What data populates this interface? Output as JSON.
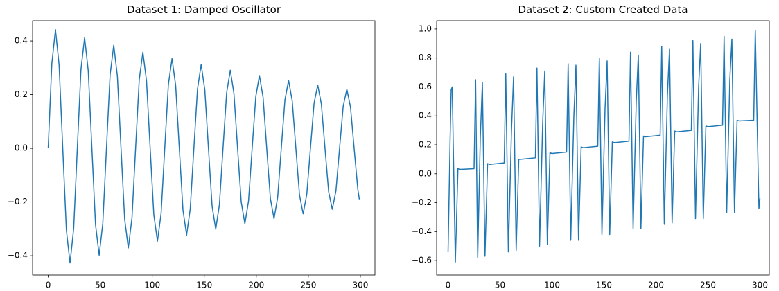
{
  "chart_data": [
    {
      "type": "line",
      "title": "Dataset 1: Damped Oscillator",
      "color": "#1f77b4",
      "x": [
        0,
        3.5,
        7,
        10.5,
        14,
        17.5,
        21,
        24.5,
        28,
        31.5,
        35,
        38.5,
        42,
        45.5,
        49,
        52.5,
        56,
        59.5,
        63,
        66.5,
        70,
        73.5,
        77,
        80.5,
        84,
        87.5,
        91,
        94.5,
        98,
        101.5,
        105,
        108.5,
        112,
        115.5,
        119,
        122.5,
        126,
        129.5,
        133,
        136.5,
        140,
        143.5,
        147,
        150.5,
        154,
        157.5,
        161,
        164.5,
        168,
        171.5,
        175,
        178.5,
        182,
        185.5,
        189,
        192.5,
        196,
        199.5,
        203,
        206.5,
        210,
        213.5,
        217,
        220.5,
        224,
        227.5,
        231,
        234.5,
        238,
        241.5,
        245,
        248.5,
        252,
        255.5,
        259,
        262.5,
        266,
        269.5,
        273,
        276.5,
        280,
        283.5,
        287,
        290.5,
        294,
        297.5,
        299
      ],
      "values": [
        0,
        0.315,
        0.442,
        0.31,
        0,
        -0.305,
        -0.427,
        -0.299,
        0,
        0.294,
        0.412,
        0.289,
        0,
        -0.284,
        -0.398,
        -0.279,
        0,
        0.274,
        0.384,
        0.269,
        0,
        -0.264,
        -0.371,
        -0.26,
        0,
        0.256,
        0.358,
        0.251,
        0,
        -0.247,
        -0.346,
        -0.243,
        0,
        0.238,
        0.334,
        0.234,
        0,
        -0.229,
        -0.323,
        -0.226,
        0,
        0.222,
        0.312,
        0.218,
        0,
        -0.215,
        -0.301,
        -0.211,
        0,
        0.207,
        0.291,
        0.204,
        0,
        -0.2,
        -0.281,
        -0.197,
        0,
        0.193,
        0.271,
        0.19,
        0,
        -0.187,
        -0.262,
        -0.183,
        0,
        0.18,
        0.253,
        0.177,
        0,
        -0.174,
        -0.244,
        -0.171,
        0,
        0.168,
        0.236,
        0.165,
        0,
        -0.162,
        -0.227,
        -0.159,
        0,
        0.157,
        0.22,
        0.154,
        0,
        -0.151,
        -0.19
      ],
      "xlim": [
        -15,
        314
      ],
      "xticks": [
        0,
        50,
        100,
        150,
        200,
        250,
        300
      ],
      "ylim": [
        -0.472,
        0.475
      ],
      "yticks": [
        {
          "value": -0.4,
          "label": "−0.4"
        },
        {
          "value": -0.2,
          "label": "−0.2"
        },
        {
          "value": 0,
          "label": "0.0"
        },
        0.2,
        0.4
      ],
      "grid": false
    },
    {
      "type": "line",
      "title": "Dataset 2: Custom Created Data",
      "color": "#1f77b4",
      "x": [
        0,
        2,
        3,
        4,
        7,
        9.5,
        12,
        25,
        26.5,
        28.5,
        31,
        33,
        35.5,
        38,
        40,
        54,
        55.5,
        58,
        61,
        63,
        65.5,
        68,
        70,
        84,
        85.5,
        88,
        91,
        93,
        95.5,
        98,
        100,
        114,
        115.5,
        118,
        121,
        123,
        125.5,
        128,
        130,
        144,
        145.5,
        148,
        151,
        153,
        155.5,
        158,
        160,
        174,
        175.5,
        178,
        181,
        183,
        185.5,
        188,
        190,
        204,
        205.5,
        208,
        211,
        213,
        215.5,
        218,
        220,
        234,
        235.5,
        238,
        241,
        243,
        245.5,
        248,
        250,
        264,
        265.5,
        268,
        271,
        273,
        275.5,
        278,
        280,
        294,
        295.5,
        299,
        300
      ],
      "values": [
        -0.54,
        0.25,
        0.58,
        0.6,
        -0.61,
        0.035,
        0.03,
        0.035,
        0.65,
        -0.58,
        0.25,
        0.63,
        -0.57,
        0.07,
        0.065,
        0.075,
        0.69,
        -0.54,
        0.3,
        0.67,
        -0.53,
        0.1,
        0.1,
        0.11,
        0.73,
        -0.5,
        0.35,
        0.71,
        -0.49,
        0.145,
        0.14,
        0.15,
        0.76,
        -0.46,
        0.4,
        0.75,
        -0.46,
        0.185,
        0.18,
        0.19,
        0.8,
        -0.42,
        0.45,
        0.78,
        -0.42,
        0.22,
        0.215,
        0.225,
        0.84,
        -0.38,
        0.5,
        0.82,
        -0.38,
        0.26,
        0.255,
        0.265,
        0.88,
        -0.35,
        0.55,
        0.86,
        -0.34,
        0.295,
        0.29,
        0.3,
        0.92,
        -0.31,
        0.6,
        0.9,
        -0.31,
        0.33,
        0.325,
        0.335,
        0.95,
        -0.27,
        0.65,
        0.93,
        -0.27,
        0.37,
        0.365,
        0.37,
        0.99,
        -0.24,
        -0.17
      ],
      "xlim": [
        -11,
        309
      ],
      "xticks": [
        0,
        50,
        100,
        150,
        200,
        250,
        300
      ],
      "ylim": [
        -0.7,
        1.057
      ],
      "yticks": [
        {
          "value": -0.6,
          "label": "−0.6"
        },
        {
          "value": -0.4,
          "label": "−0.4"
        },
        {
          "value": -0.2,
          "label": "−0.2"
        },
        {
          "value": 0,
          "label": "0.0"
        },
        0.2,
        0.4,
        0.6,
        0.8,
        {
          "value": 1,
          "label": "1.0"
        }
      ],
      "grid": false
    }
  ]
}
